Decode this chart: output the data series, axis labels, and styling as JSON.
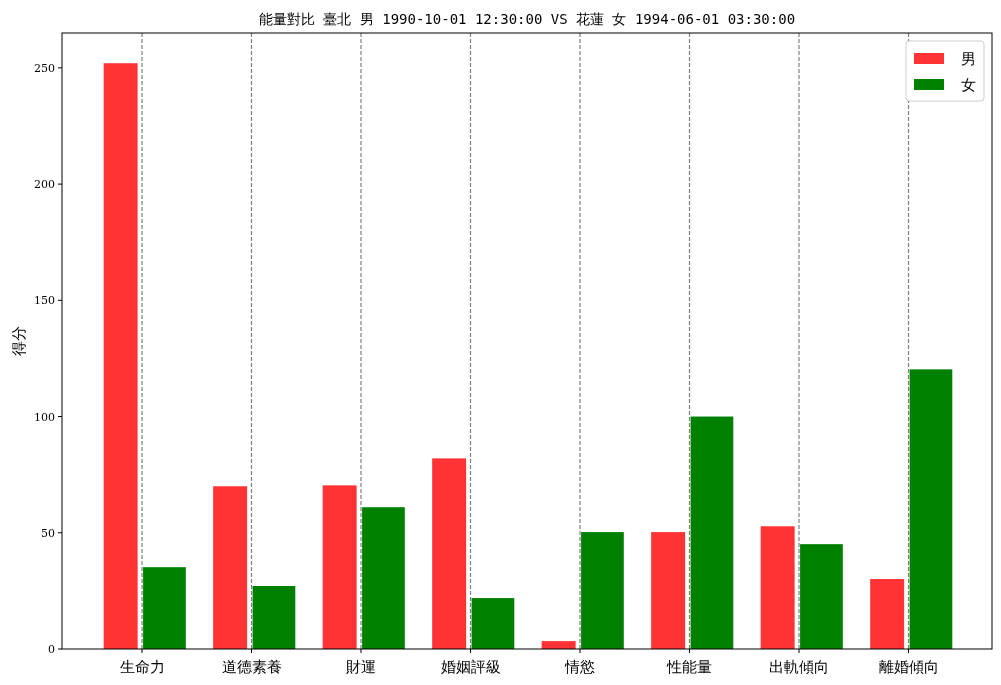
{
  "chart_data": {
    "type": "bar",
    "title": "能量對比 臺北 男 1990-10-01 12:30:00 VS 花蓮 女 1994-06-01 03:30:00",
    "ylabel": "得分",
    "categories": [
      "生命力",
      "道德素養",
      "財運",
      "婚姻評級",
      "情慾",
      "性能量",
      "出軌傾向",
      "離婚傾向"
    ],
    "series": [
      {
        "name": "男",
        "color": "#ff3333",
        "values": [
          252,
          70,
          70.4,
          82,
          3.4,
          50.3,
          52.8,
          30.1
        ]
      },
      {
        "name": "女",
        "color": "#008000",
        "values": [
          35.2,
          27.1,
          61,
          21.9,
          50.3,
          100,
          45.1,
          120.3
        ]
      }
    ],
    "ylim": [
      0,
      265
    ],
    "yticks": [
      0,
      50,
      100,
      150,
      200,
      250
    ],
    "grid": "x",
    "legend": "top right"
  }
}
